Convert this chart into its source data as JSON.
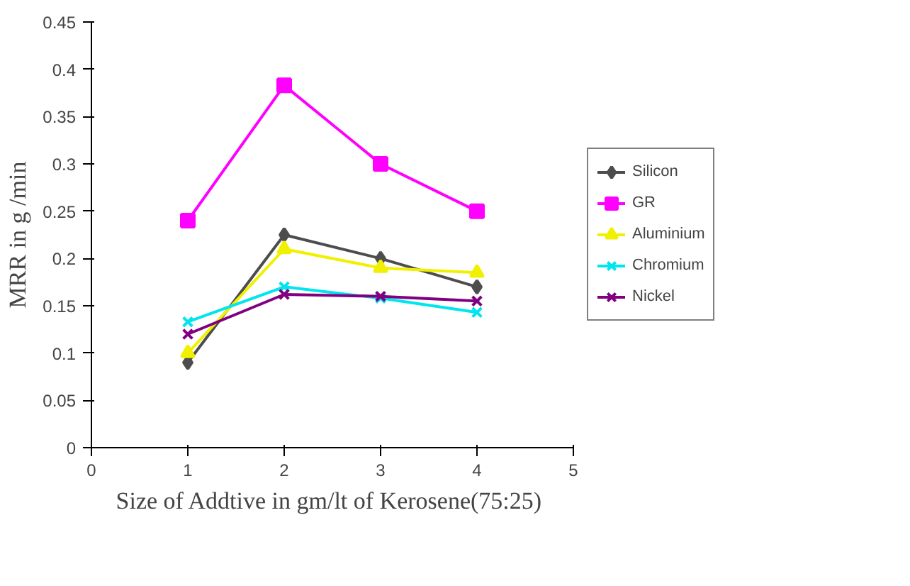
{
  "chart_data": {
    "type": "line",
    "xlabel": "Size of Addtive  in gm/lt of Kerosene(75:25)",
    "ylabel": "MRR in g /min",
    "x": [
      1,
      2,
      3,
      4
    ],
    "xlim": [
      0,
      5
    ],
    "xticks": [
      0,
      1,
      2,
      3,
      4,
      5
    ],
    "ylim": [
      0,
      0.45
    ],
    "yticks": [
      0,
      0.05,
      0.1,
      0.15,
      0.2,
      0.25,
      0.3,
      0.35,
      0.4,
      0.45
    ],
    "grid": false,
    "legend": "right",
    "series": [
      {
        "name": "Silicon",
        "color": "#4d4d4d",
        "marker": "diamond",
        "values": [
          0.09,
          0.225,
          0.2,
          0.17
        ]
      },
      {
        "name": "GR",
        "color": "#ff00ff",
        "marker": "square",
        "values": [
          0.24,
          0.383,
          0.3,
          0.25
        ]
      },
      {
        "name": "Aluminium",
        "color": "#f0f000",
        "marker": "triangle",
        "values": [
          0.1,
          0.21,
          0.19,
          0.185
        ]
      },
      {
        "name": "Chromium",
        "color": "#00e5ee",
        "marker": "cross",
        "values": [
          0.133,
          0.17,
          0.158,
          0.143
        ]
      },
      {
        "name": "Nickel",
        "color": "#800080",
        "marker": "cross",
        "values": [
          0.12,
          0.162,
          0.16,
          0.155
        ]
      }
    ]
  }
}
